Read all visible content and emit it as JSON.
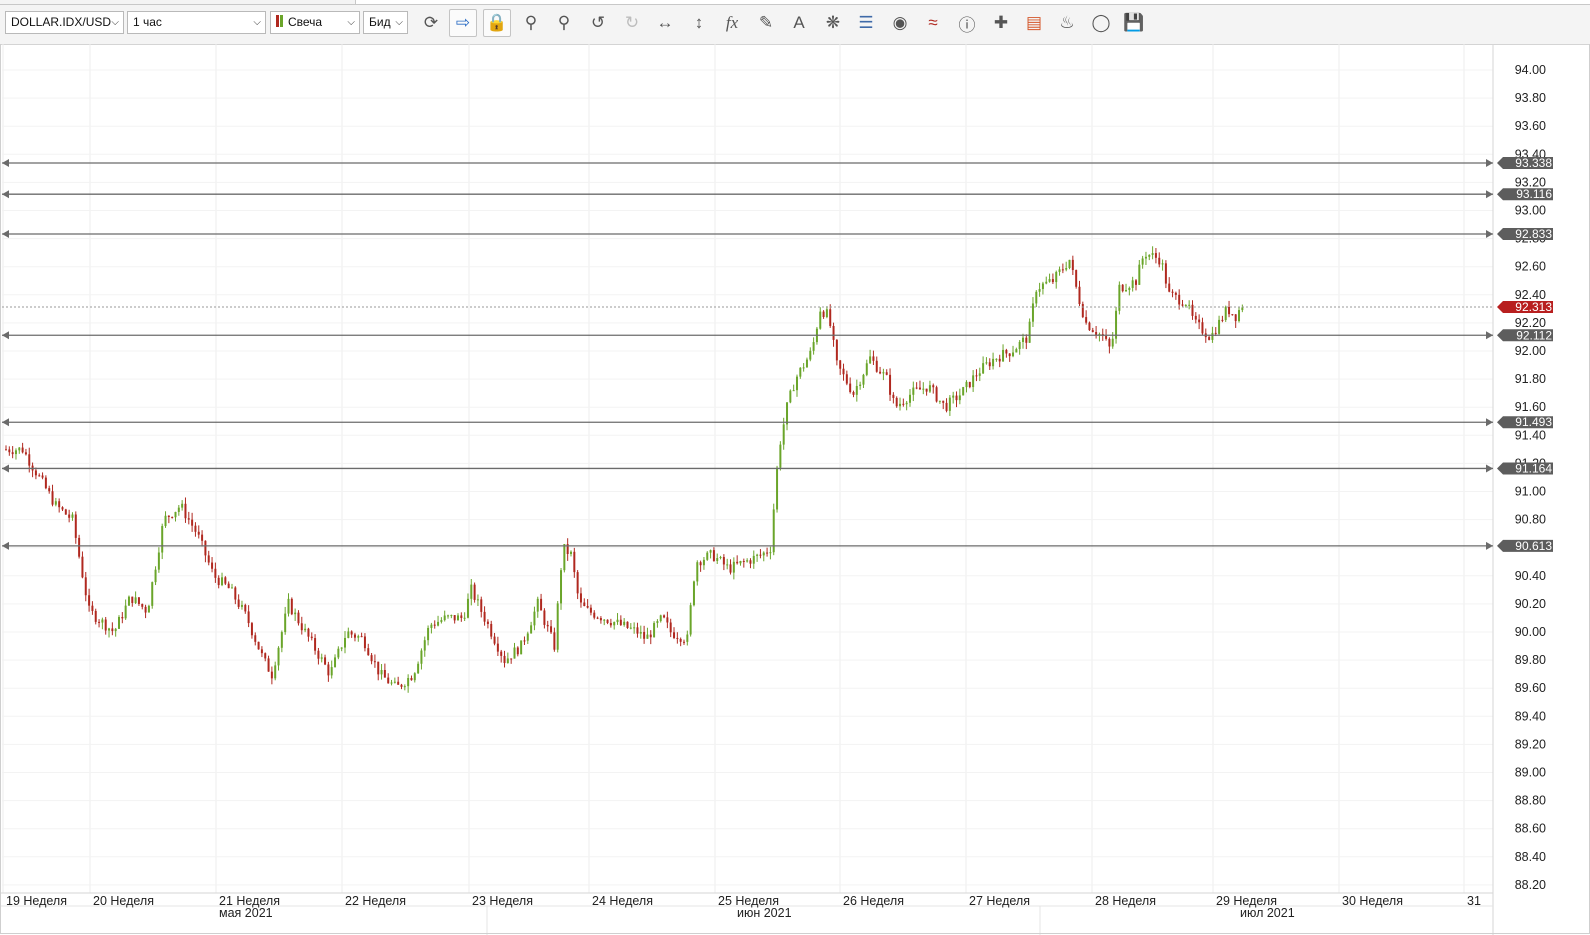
{
  "toolbar": {
    "symbol": "DOLLAR.IDX/USD",
    "timeframe": "1 час",
    "chart_type": "Свеча",
    "price_type": "Бид",
    "icons": [
      "refresh-icon",
      "autoscroll-icon",
      "lock-icon",
      "zoom-in-icon",
      "zoom-out-icon",
      "undo-icon",
      "redo-icon",
      "horizontal-scale-icon",
      "vertical-scale-icon",
      "indicator-fx-icon",
      "pencil-icon",
      "text-icon",
      "network-icon",
      "layers-icon",
      "eye-icon",
      "signal-icon",
      "info-icon",
      "crosshair-icon",
      "color-bars-icon",
      "paint-bucket-icon",
      "settings-ring-icon",
      "save-icon"
    ]
  },
  "colors": {
    "bull": "#6aa52a",
    "bear": "#b0281f",
    "level_line": "#6b6b6b",
    "level_tag": "#5d5d5d",
    "current_tag": "#b81f1f",
    "grid": "#ececec"
  },
  "chart_data": {
    "type": "candlestick",
    "symbol": "DOLLAR.IDX/USD",
    "interval": "1 час",
    "ylim": [
      88.2,
      94.0
    ],
    "y_ticks": [
      "94.00",
      "93.80",
      "93.60",
      "93.40",
      "93.20",
      "93.00",
      "92.80",
      "92.60",
      "92.40",
      "92.20",
      "92.00",
      "91.80",
      "91.60",
      "91.40",
      "91.20",
      "91.00",
      "90.80",
      "90.60",
      "90.40",
      "90.20",
      "90.00",
      "89.80",
      "89.60",
      "89.40",
      "89.20",
      "89.00",
      "88.80",
      "88.60",
      "88.40",
      "88.20"
    ],
    "x_ticks": [
      "19 Неделя",
      "20 Неделя",
      "21 Неделя",
      "22 Неделя",
      "23 Неделя",
      "24 Неделя",
      "25 Неделя",
      "26 Неделя",
      "27 Неделя",
      "28 Неделя",
      "29 Неделя",
      "30 Неделя",
      "31"
    ],
    "month_labels": [
      "мая 2021",
      "июн 2021",
      "июл 2021"
    ],
    "horizontal_levels": [
      "93.338",
      "93.116",
      "92.833",
      "92.112",
      "91.493",
      "91.164",
      "90.613"
    ],
    "current_price": "92.313",
    "price_path": [
      [
        0,
        91.3
      ],
      [
        2,
        91.3
      ],
      [
        4,
        91.1
      ],
      [
        6,
        90.9
      ],
      [
        8,
        90.8
      ],
      [
        10,
        90.15
      ],
      [
        11,
        90.1
      ],
      [
        13,
        90.0
      ],
      [
        15,
        90.25
      ],
      [
        17,
        90.15
      ],
      [
        19,
        90.8
      ],
      [
        21,
        90.9
      ],
      [
        23,
        90.7
      ],
      [
        25,
        90.4
      ],
      [
        27,
        90.3
      ],
      [
        29,
        90.1
      ],
      [
        31,
        89.8
      ],
      [
        32,
        89.7
      ],
      [
        34,
        90.2
      ],
      [
        35,
        90.1
      ],
      [
        37,
        89.9
      ],
      [
        39,
        89.7
      ],
      [
        41,
        90.0
      ],
      [
        43,
        89.95
      ],
      [
        45,
        89.7
      ],
      [
        47,
        89.6
      ],
      [
        49,
        89.7
      ],
      [
        51,
        90.05
      ],
      [
        53,
        90.1
      ],
      [
        55,
        90.1
      ],
      [
        56,
        90.3
      ],
      [
        58,
        90.05
      ],
      [
        60,
        89.8
      ],
      [
        62,
        89.9
      ],
      [
        64,
        90.2
      ],
      [
        66,
        89.9
      ],
      [
        67,
        90.6
      ],
      [
        68,
        90.55
      ],
      [
        69,
        90.2
      ],
      [
        70,
        90.15
      ],
      [
        72,
        90.1
      ],
      [
        74,
        90.05
      ],
      [
        76,
        90.0
      ],
      [
        77,
        89.95
      ],
      [
        79,
        90.1
      ],
      [
        80,
        90.0
      ],
      [
        82,
        89.95
      ],
      [
        83,
        90.5
      ],
      [
        85,
        90.55
      ],
      [
        87,
        90.45
      ],
      [
        89,
        90.5
      ],
      [
        91,
        90.55
      ],
      [
        92,
        90.6
      ],
      [
        93,
        91.3
      ],
      [
        94,
        91.6
      ],
      [
        95,
        91.8
      ],
      [
        97,
        92.0
      ],
      [
        98,
        92.3
      ],
      [
        99,
        92.25
      ],
      [
        100,
        91.9
      ],
      [
        102,
        91.7
      ],
      [
        104,
        91.95
      ],
      [
        106,
        91.8
      ],
      [
        107,
        91.6
      ],
      [
        109,
        91.7
      ],
      [
        111,
        91.75
      ],
      [
        113,
        91.6
      ],
      [
        115,
        91.7
      ],
      [
        117,
        91.85
      ],
      [
        119,
        91.95
      ],
      [
        121,
        92.0
      ],
      [
        123,
        92.1
      ],
      [
        124,
        92.45
      ],
      [
        126,
        92.5
      ],
      [
        128,
        92.65
      ],
      [
        129,
        92.4
      ],
      [
        130,
        92.2
      ],
      [
        132,
        92.1
      ],
      [
        133,
        92.0
      ],
      [
        134,
        92.45
      ],
      [
        136,
        92.5
      ],
      [
        137,
        92.7
      ],
      [
        139,
        92.65
      ],
      [
        140,
        92.4
      ],
      [
        142,
        92.35
      ],
      [
        143,
        92.2
      ],
      [
        145,
        92.1
      ],
      [
        147,
        92.3
      ],
      [
        148,
        92.25
      ],
      [
        149,
        92.35
      ]
    ]
  }
}
